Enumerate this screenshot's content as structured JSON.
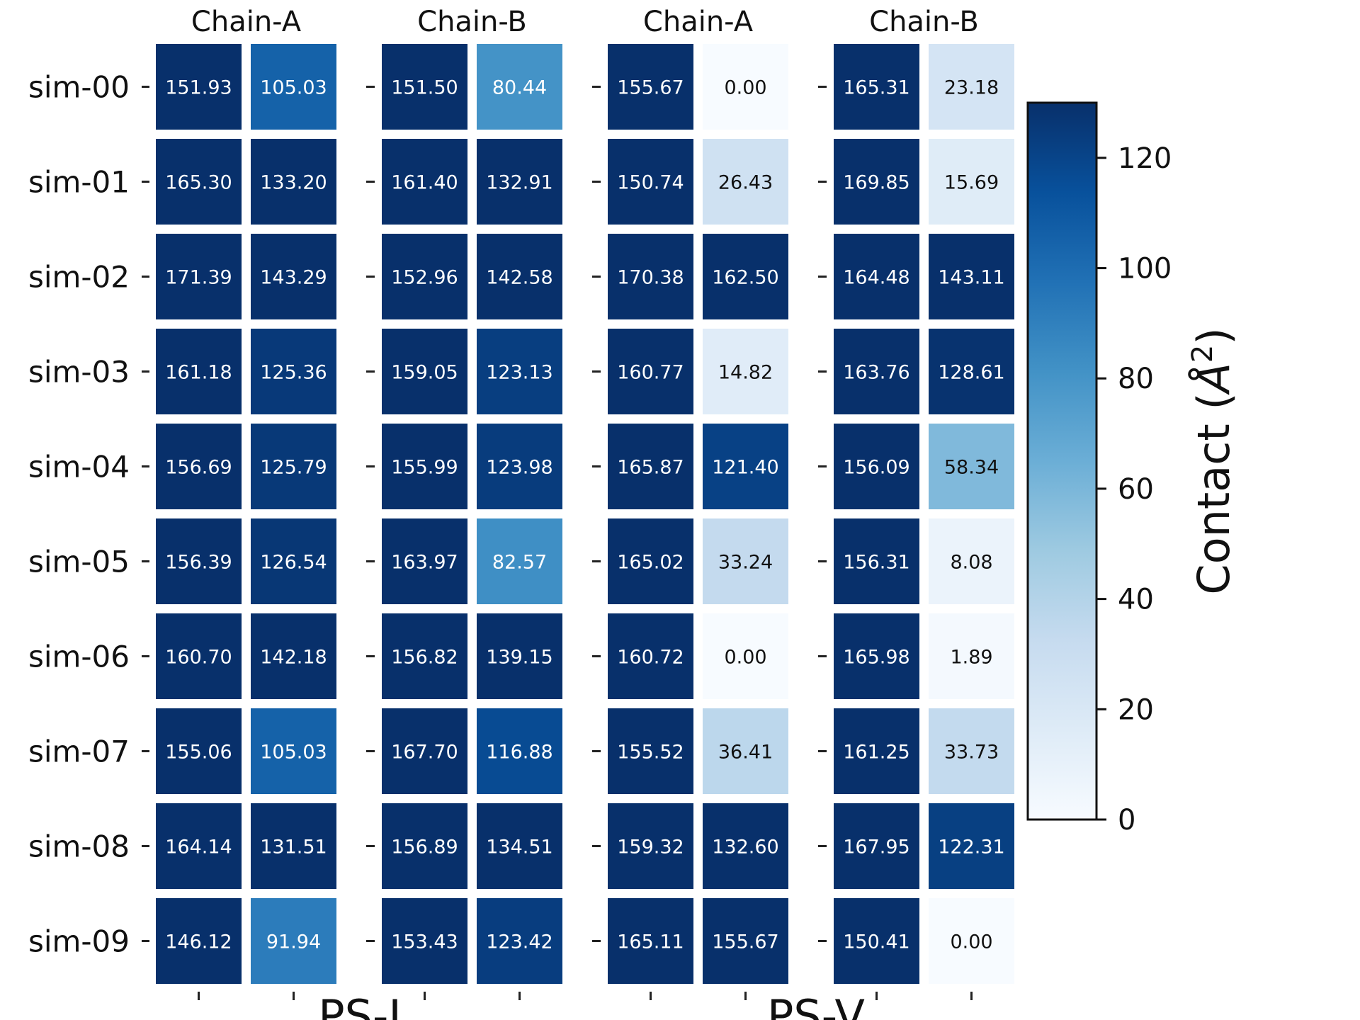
{
  "chart_data": {
    "type": "heatmap",
    "rows": [
      "sim-00",
      "sim-01",
      "sim-02",
      "sim-03",
      "sim-04",
      "sim-05",
      "sim-06",
      "sim-07",
      "sim-08",
      "sim-09"
    ],
    "groups": [
      {
        "section": "PS-I",
        "title": "Chain-A",
        "values": [
          [
            151.93,
            105.03
          ],
          [
            165.3,
            133.2
          ],
          [
            171.39,
            143.29
          ],
          [
            161.18,
            125.36
          ],
          [
            156.69,
            125.79
          ],
          [
            156.39,
            126.54
          ],
          [
            160.7,
            142.18
          ],
          [
            155.06,
            105.03
          ],
          [
            164.14,
            131.51
          ],
          [
            146.12,
            91.94
          ]
        ]
      },
      {
        "section": "PS-I",
        "title": "Chain-B",
        "values": [
          [
            151.5,
            80.44
          ],
          [
            161.4,
            132.91
          ],
          [
            152.96,
            142.58
          ],
          [
            159.05,
            123.13
          ],
          [
            155.99,
            123.98
          ],
          [
            163.97,
            82.57
          ],
          [
            156.82,
            139.15
          ],
          [
            167.7,
            116.88
          ],
          [
            156.89,
            134.51
          ],
          [
            153.43,
            123.42
          ]
        ]
      },
      {
        "section": "PS-V",
        "title": "Chain-A",
        "values": [
          [
            155.67,
            0.0
          ],
          [
            150.74,
            26.43
          ],
          [
            170.38,
            162.5
          ],
          [
            160.77,
            14.82
          ],
          [
            165.87,
            121.4
          ],
          [
            165.02,
            33.24
          ],
          [
            160.72,
            0.0
          ],
          [
            155.52,
            36.41
          ],
          [
            159.32,
            132.6
          ],
          [
            165.11,
            155.67
          ]
        ]
      },
      {
        "section": "PS-V",
        "title": "Chain-B",
        "values": [
          [
            165.31,
            23.18
          ],
          [
            169.85,
            15.69
          ],
          [
            164.48,
            143.11
          ],
          [
            163.76,
            128.61
          ],
          [
            156.09,
            58.34
          ],
          [
            156.31,
            8.08
          ],
          [
            165.98,
            1.89
          ],
          [
            161.25,
            33.73
          ],
          [
            167.95,
            122.31
          ],
          [
            150.41,
            -0.0
          ]
        ]
      }
    ],
    "sections": [
      "PS-I",
      "PS-V"
    ],
    "colorbar": {
      "label": "Contact (Å²)",
      "label_main": "Contact (",
      "label_unit": "Å",
      "label_exp": "2",
      "label_close": ")",
      "range": [
        0,
        130
      ],
      "ticks": [
        "0",
        "20",
        "40",
        "60",
        "80",
        "100",
        "120"
      ],
      "colormap": "Blues"
    },
    "xlabel": "",
    "ylabel": "",
    "grid": false
  }
}
